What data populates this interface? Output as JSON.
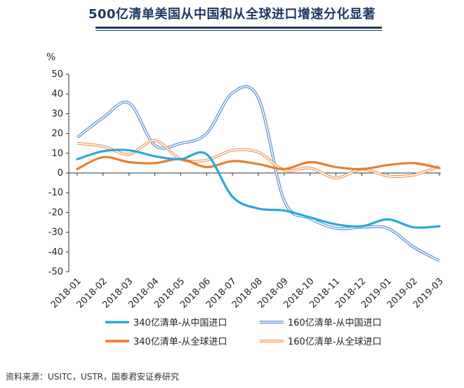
{
  "header": {
    "title": "500亿清单美国从中国和从全球进口增速分化显著"
  },
  "source_note": "资料来源：USITC，USTR，国泰君安证券研究",
  "chart_data": {
    "type": "line",
    "title": "500亿清单美国从中国和从全球进口增速分化显著",
    "ylabel": "%",
    "xlabel": "",
    "ylim": [
      -50,
      50
    ],
    "yticks": [
      50,
      40,
      30,
      20,
      10,
      0,
      -10,
      -20,
      -30,
      -40,
      -50
    ],
    "categories": [
      "2018-01",
      "2018-02",
      "2018-03",
      "2018-04",
      "2018-05",
      "2018-06",
      "2018-07",
      "2018-08",
      "2018-09",
      "2018-10",
      "2018-11",
      "2018-12",
      "2019-01",
      "2019-02",
      "2019-03"
    ],
    "grid": false,
    "legend_position": "bottom",
    "series": [
      {
        "name": "340亿清单-从中国进口",
        "color": "#29a8d8",
        "style": "solid",
        "values": [
          7,
          11,
          11.5,
          8.5,
          7,
          9.5,
          -12,
          -18,
          -19,
          -22.5,
          -26,
          -27,
          -23.5,
          -27.5,
          -27
        ]
      },
      {
        "name": "160亿清单-从中国进口",
        "color": "#5b8fcf",
        "style": "double",
        "values": [
          18,
          28,
          35.5,
          14,
          15,
          20,
          40.5,
          38,
          -14,
          -23,
          -28,
          -27.5,
          -28,
          -37.5,
          -44.5
        ]
      },
      {
        "name": "340亿清单-从全球进口",
        "color": "#e87f2e",
        "style": "solid",
        "values": [
          2,
          8,
          5.5,
          5,
          7,
          3,
          6,
          4.5,
          2,
          5.5,
          3,
          2,
          4,
          5,
          2.5
        ]
      },
      {
        "name": "160亿清单-从全球进口",
        "color": "#e8985c",
        "style": "double",
        "values": [
          15,
          13.5,
          9.5,
          16.5,
          7,
          6.5,
          11.5,
          10.5,
          1.5,
          2.5,
          -2.5,
          2,
          -1.5,
          -1,
          3.5
        ]
      }
    ]
  }
}
